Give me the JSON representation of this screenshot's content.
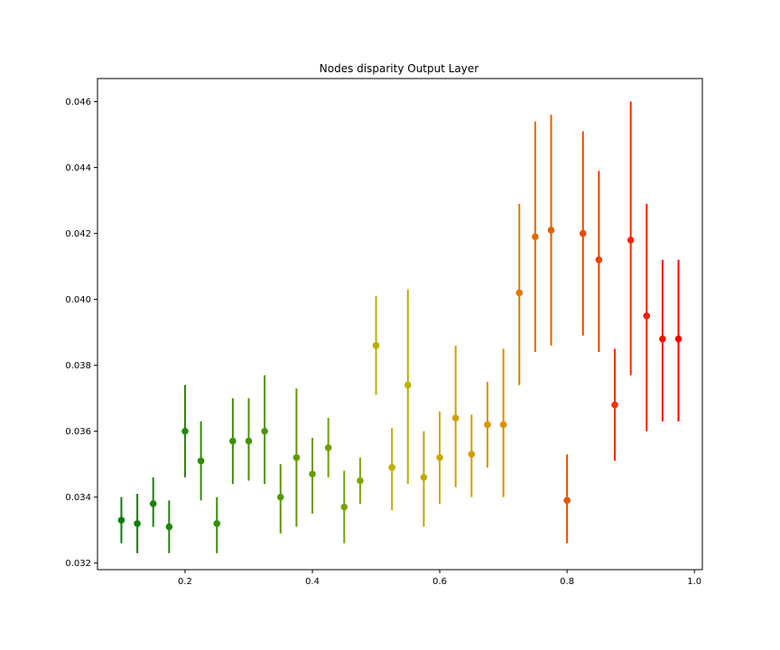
{
  "chart_data": {
    "type": "scatter",
    "title": "Nodes disparity Output Layer",
    "xlabel": "",
    "ylabel": "",
    "xlim": [
      0.0625,
      1.0125
    ],
    "ylim": [
      0.0318,
      0.0467
    ],
    "x_ticks": [
      0.2,
      0.4,
      0.6,
      0.8,
      1.0
    ],
    "x_tick_labels": [
      "0.2",
      "0.4",
      "0.6",
      "0.8",
      "1.0"
    ],
    "y_ticks": [
      0.032,
      0.034,
      0.036,
      0.038,
      0.04,
      0.042,
      0.044,
      0.046
    ],
    "y_tick_labels": [
      "0.032",
      "0.034",
      "0.036",
      "0.038",
      "0.040",
      "0.042",
      "0.044",
      "0.046"
    ],
    "grid": false,
    "series": [
      {
        "x": [
          0.1,
          0.125,
          0.15,
          0.175,
          0.2,
          0.225,
          0.25,
          0.275,
          0.3,
          0.325,
          0.35,
          0.375,
          0.4,
          0.425,
          0.45,
          0.475,
          0.5,
          0.525,
          0.55,
          0.575,
          0.6,
          0.625,
          0.65,
          0.675,
          0.7,
          0.725,
          0.75,
          0.775,
          0.8,
          0.825,
          0.85,
          0.875,
          0.9,
          0.925,
          0.95,
          0.975
        ],
        "y": [
          0.0333,
          0.0332,
          0.0338,
          0.0331,
          0.036,
          0.0351,
          0.0332,
          0.0357,
          0.0357,
          0.036,
          0.034,
          0.0352,
          0.0347,
          0.0355,
          0.0337,
          0.0345,
          0.0386,
          0.0349,
          0.0374,
          0.0346,
          0.0352,
          0.0364,
          0.0353,
          0.0362,
          0.0362,
          0.0402,
          0.0419,
          0.0421,
          0.0339,
          0.042,
          0.0412,
          0.0368,
          0.0418,
          0.0395,
          0.0388,
          0.0388
        ],
        "y_low": [
          0.0326,
          0.0323,
          0.0331,
          0.0323,
          0.0346,
          0.0339,
          0.0323,
          0.0344,
          0.0345,
          0.0344,
          0.0329,
          0.0331,
          0.0335,
          0.0346,
          0.0326,
          0.0338,
          0.0371,
          0.0336,
          0.0344,
          0.0331,
          0.0338,
          0.0343,
          0.034,
          0.0349,
          0.034,
          0.0374,
          0.0384,
          0.0386,
          0.0326,
          0.0389,
          0.0384,
          0.0351,
          0.0377,
          0.036,
          0.0363,
          0.0363
        ],
        "y_high": [
          0.034,
          0.0341,
          0.0346,
          0.0339,
          0.0374,
          0.0363,
          0.034,
          0.037,
          0.037,
          0.0377,
          0.035,
          0.0373,
          0.0358,
          0.0364,
          0.0348,
          0.0352,
          0.0401,
          0.0361,
          0.0403,
          0.036,
          0.0366,
          0.0386,
          0.0365,
          0.0375,
          0.0385,
          0.0429,
          0.0454,
          0.0456,
          0.0353,
          0.0451,
          0.0439,
          0.0385,
          0.046,
          0.0429,
          0.0412,
          0.0412
        ],
        "colors": [
          "#078007",
          "#0f8207",
          "#178506",
          "#1f8706",
          "#268a06",
          "#2e8c05",
          "#368f05",
          "#3e9105",
          "#469404",
          "#4e9604",
          "#569904",
          "#5e9b03",
          "#669e03",
          "#6ea003",
          "#76a302",
          "#7ea502",
          "#b4b000",
          "#c0b000",
          "#b8b200",
          "#c4a800",
          "#cca800",
          "#d4a000",
          "#d89c00",
          "#dc9400",
          "#e08c00",
          "#e27a00",
          "#e46a00",
          "#e46000",
          "#e45400",
          "#e84a00",
          "#ea4000",
          "#ec3400",
          "#f02800",
          "#f21c00",
          "#f41000",
          "#f60400"
        ]
      }
    ]
  }
}
